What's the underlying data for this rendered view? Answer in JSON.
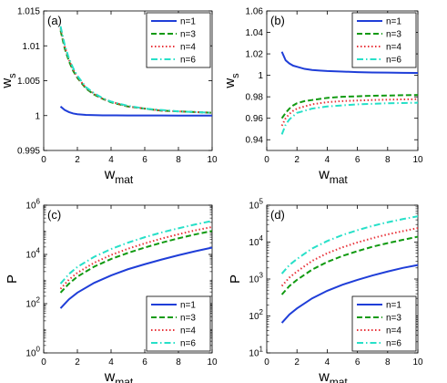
{
  "colors": {
    "n1": "#1f3ed8",
    "n3": "#119a11",
    "n4": "#e8333a",
    "n6": "#27e0c8"
  },
  "chart_data": [
    {
      "type": "line",
      "panel_label": "(a)",
      "xlabel": "w",
      "xlabel_sub": "mat",
      "ylabel": "w",
      "ylabel_sub": "s",
      "yscale": "linear",
      "xlim": [
        0,
        10
      ],
      "ylim": [
        0.995,
        1.015
      ],
      "xticks": [
        0,
        2,
        4,
        6,
        8,
        10
      ],
      "xtick_labels": [
        "0",
        "2",
        "4",
        "6",
        "8",
        "10"
      ],
      "yticks": [
        0.995,
        1,
        1.005,
        1.01,
        1.015
      ],
      "ytick_labels": [
        "0.995",
        "1",
        "1.005",
        "1.01",
        "1.015"
      ],
      "legend": "top-right",
      "x": [
        1,
        1.25,
        1.5,
        1.75,
        2,
        2.5,
        3,
        3.5,
        4,
        5,
        6,
        7,
        8,
        9,
        10
      ],
      "series": [
        {
          "name": "n=1",
          "style": "solid",
          "color_key": "n1",
          "values": [
            1.0013,
            1.0008,
            1.0005,
            1.0003,
            1.0002,
            1.0001,
            1.00006,
            1.00004,
            1.00003,
            1.00002,
            1.00001,
            1.00001,
            1.0,
            1.0,
            1.0
          ]
        },
        {
          "name": "n=3",
          "style": "dashed",
          "color_key": "n3",
          "values": [
            1.0122,
            1.0096,
            1.0078,
            1.0064,
            1.0054,
            1.0039,
            1.003,
            1.0024,
            1.0019,
            1.0013,
            1.001,
            1.0007,
            1.0006,
            1.0005,
            1.0004
          ]
        },
        {
          "name": "n=4",
          "style": "dotted",
          "color_key": "n4",
          "values": [
            1.0125,
            1.0099,
            1.008,
            1.0066,
            1.0055,
            1.004,
            1.0031,
            1.0024,
            1.002,
            1.0013,
            1.001,
            1.0007,
            1.0006,
            1.0005,
            1.0004
          ]
        },
        {
          "name": "n=6",
          "style": "dashdot",
          "color_key": "n6",
          "values": [
            1.0128,
            1.0101,
            1.0082,
            1.0068,
            1.0057,
            1.0041,
            1.0032,
            1.0025,
            1.002,
            1.0014,
            1.001,
            1.0008,
            1.0006,
            1.0005,
            1.0004
          ]
        }
      ]
    },
    {
      "type": "line",
      "panel_label": "(b)",
      "xlabel": "w",
      "xlabel_sub": "mat",
      "ylabel": "w",
      "ylabel_sub": "s",
      "yscale": "linear",
      "xlim": [
        0,
        10
      ],
      "ylim": [
        0.93,
        1.06
      ],
      "xticks": [
        0,
        2,
        4,
        6,
        8,
        10
      ],
      "xtick_labels": [
        "0",
        "2",
        "4",
        "6",
        "8",
        "10"
      ],
      "yticks": [
        0.94,
        0.96,
        0.98,
        1,
        1.02,
        1.04,
        1.06
      ],
      "ytick_labels": [
        "0.94",
        "0.96",
        "0.98",
        "1",
        "1.02",
        "1.04",
        "1.06"
      ],
      "legend": "top-right",
      "x": [
        1,
        1.25,
        1.5,
        1.75,
        2,
        2.5,
        3,
        3.5,
        4,
        5,
        6,
        7,
        8,
        9,
        10
      ],
      "series": [
        {
          "name": "n=1",
          "style": "solid",
          "color_key": "n1",
          "values": [
            1.022,
            1.014,
            1.011,
            1.009,
            1.008,
            1.006,
            1.005,
            1.0045,
            1.004,
            1.0035,
            1.003,
            1.0027,
            1.0025,
            1.0023,
            1.0022
          ]
        },
        {
          "name": "n=3",
          "style": "dashed",
          "color_key": "n3",
          "values": [
            0.96,
            0.965,
            0.969,
            0.972,
            0.974,
            0.976,
            0.977,
            0.978,
            0.979,
            0.98,
            0.9805,
            0.981,
            0.9812,
            0.9815,
            0.9817
          ]
        },
        {
          "name": "n=4",
          "style": "dotted",
          "color_key": "n4",
          "values": [
            0.953,
            0.96,
            0.964,
            0.967,
            0.969,
            0.971,
            0.973,
            0.974,
            0.975,
            0.976,
            0.9765,
            0.977,
            0.9773,
            0.9776,
            0.9778
          ]
        },
        {
          "name": "n=6",
          "style": "dashdot",
          "color_key": "n6",
          "values": [
            0.945,
            0.954,
            0.959,
            0.962,
            0.965,
            0.967,
            0.969,
            0.97,
            0.971,
            0.972,
            0.973,
            0.9735,
            0.974,
            0.9742,
            0.9745
          ]
        }
      ]
    },
    {
      "type": "line",
      "panel_label": "(c)",
      "xlabel": "w",
      "xlabel_sub": "mat",
      "ylabel": "P",
      "ylabel_sub": "",
      "yscale": "log",
      "xlim": [
        0,
        10
      ],
      "ylim": [
        1,
        1000000
      ],
      "xticks": [
        0,
        2,
        4,
        6,
        8,
        10
      ],
      "xtick_labels": [
        "0",
        "2",
        "4",
        "6",
        "8",
        "10"
      ],
      "yticks": [
        1,
        100,
        10000,
        1000000
      ],
      "ytick_base": [
        "10",
        "10",
        "10",
        "10"
      ],
      "ytick_exp": [
        "0",
        "2",
        "4",
        "6"
      ],
      "legend": "bottom-right",
      "x": [
        1,
        1.5,
        2,
        3,
        4,
        5,
        6,
        7,
        8,
        9,
        10
      ],
      "series": [
        {
          "name": "n=1",
          "style": "solid",
          "color_key": "n1",
          "values": [
            65,
            150,
            280,
            700,
            1400,
            2500,
            4000,
            6200,
            9300,
            13500,
            19000
          ]
        },
        {
          "name": "n=3",
          "style": "dashed",
          "color_key": "n3",
          "values": [
            280,
            650,
            1250,
            3200,
            6500,
            11500,
            19000,
            30000,
            45000,
            65000,
            90000
          ]
        },
        {
          "name": "n=4",
          "style": "dotted",
          "color_key": "n4",
          "values": [
            400,
            950,
            1800,
            4600,
            9500,
            17000,
            28000,
            44000,
            66000,
            95000,
            130000
          ]
        },
        {
          "name": "n=6",
          "style": "dashdot",
          "color_key": "n6",
          "values": [
            650,
            1600,
            3100,
            8000,
            16500,
            30000,
            50000,
            78000,
            115000,
            165000,
            230000
          ]
        }
      ]
    },
    {
      "type": "line",
      "panel_label": "(d)",
      "xlabel": "w",
      "xlabel_sub": "mat",
      "ylabel": "P",
      "ylabel_sub": "",
      "yscale": "log",
      "xlim": [
        0,
        10
      ],
      "ylim": [
        10,
        100000
      ],
      "xticks": [
        0,
        2,
        4,
        6,
        8,
        10
      ],
      "xtick_labels": [
        "0",
        "2",
        "4",
        "6",
        "8",
        "10"
      ],
      "yticks": [
        10,
        100,
        1000,
        10000,
        100000
      ],
      "ytick_base": [
        "10",
        "10",
        "10",
        "10",
        "10"
      ],
      "ytick_exp": [
        "1",
        "2",
        "3",
        "4",
        "5"
      ],
      "legend": "bottom-right",
      "x": [
        1,
        1.5,
        2,
        3,
        4,
        5,
        6,
        7,
        8,
        9,
        10
      ],
      "series": [
        {
          "name": "n=1",
          "style": "solid",
          "color_key": "n1",
          "values": [
            65,
            110,
            160,
            300,
            480,
            700,
            950,
            1250,
            1600,
            2000,
            2400
          ]
        },
        {
          "name": "n=3",
          "style": "dashed",
          "color_key": "n3",
          "values": [
            380,
            650,
            950,
            1800,
            2900,
            4200,
            5700,
            7500,
            9400,
            11500,
            14000
          ]
        },
        {
          "name": "n=4",
          "style": "dotted",
          "color_key": "n4",
          "values": [
            650,
            1100,
            1600,
            3100,
            5000,
            7200,
            9800,
            12800,
            16200,
            19800,
            24000
          ]
        },
        {
          "name": "n=6",
          "style": "dashdot",
          "color_key": "n6",
          "values": [
            1400,
            2400,
            3500,
            6700,
            10700,
            15500,
            21000,
            27500,
            34500,
            42000,
            50000
          ]
        }
      ]
    }
  ]
}
